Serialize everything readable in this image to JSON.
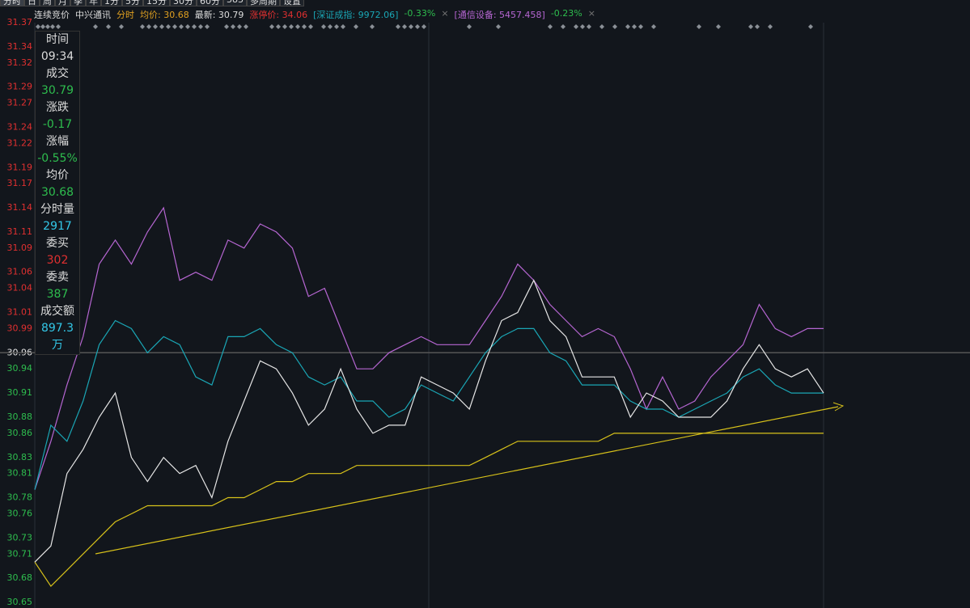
{
  "tabs": [
    "分时",
    "日",
    "周",
    "月",
    "季",
    "年",
    "1分",
    "5分",
    "15分",
    "30分",
    "60分",
    "383",
    "多周期",
    "设置"
  ],
  "header": {
    "mode": "连续竞价",
    "stock": "中兴通讯",
    "view": "分时",
    "avg": "均价: 30.68",
    "last": "最新: 30.79",
    "limit": "涨停价: 34.06",
    "index1": "[深证成指: 9972.06]",
    "index1_chg": "-0.33%",
    "index2": "[通信设备: 5457.458]",
    "index2_chg": "-0.23%",
    "close": "×"
  },
  "panel": [
    {
      "label": "时间",
      "value": "09:34"
    },
    {
      "label": "成交",
      "value": "30.79"
    },
    {
      "label": "涨跌",
      "value": "-0.17"
    },
    {
      "label": "涨幅",
      "value": "-0.55%"
    },
    {
      "label": "均价",
      "value": "30.68"
    },
    {
      "label": "分时量",
      "value": "2917"
    },
    {
      "label": "委买",
      "value": "302"
    },
    {
      "label": "委卖",
      "value": "387"
    },
    {
      "label": "成交额",
      "value": "897.3万"
    }
  ],
  "chart_data": {
    "type": "line",
    "ylim": [
      30.65,
      31.37
    ],
    "prev_close": 30.96,
    "up_color": "#e03030",
    "down_color": "#2ebd4e",
    "flat_color": "#e6e6e6",
    "yticks": [
      31.37,
      31.34,
      31.32,
      31.29,
      31.27,
      31.24,
      31.22,
      31.19,
      31.17,
      31.14,
      31.11,
      31.09,
      31.06,
      31.04,
      31.01,
      30.99,
      30.96,
      30.94,
      30.91,
      30.88,
      30.86,
      30.83,
      30.81,
      30.78,
      30.76,
      30.73,
      30.71,
      30.68,
      30.65
    ],
    "series": [
      {
        "color": "#b666d2",
        "values": [
          30.79,
          30.85,
          30.92,
          30.98,
          31.07,
          31.1,
          31.07,
          31.11,
          31.14,
          31.05,
          31.06,
          31.05,
          31.1,
          31.09,
          31.12,
          31.11,
          31.09,
          31.03,
          31.04,
          30.99,
          30.94,
          30.94,
          30.96,
          30.97,
          30.98,
          30.97,
          30.97,
          30.97,
          31.0,
          31.03,
          31.07,
          31.05,
          31.02,
          31.0,
          30.98,
          30.99,
          30.98,
          30.94,
          30.89,
          30.93,
          30.89,
          30.9,
          30.93,
          30.95,
          30.97,
          31.02,
          30.99,
          30.98,
          30.99,
          30.99
        ]
      },
      {
        "color": "#1aa6b5",
        "values": [
          30.79,
          30.87,
          30.85,
          30.9,
          30.97,
          31.0,
          30.99,
          30.96,
          30.98,
          30.97,
          30.93,
          30.92,
          30.98,
          30.98,
          30.99,
          30.97,
          30.96,
          30.93,
          30.92,
          30.93,
          30.9,
          30.9,
          30.88,
          30.89,
          30.92,
          30.91,
          30.9,
          30.93,
          30.96,
          30.98,
          30.99,
          30.99,
          30.96,
          30.95,
          30.92,
          30.92,
          30.92,
          30.9,
          30.89,
          30.89,
          30.88,
          30.89,
          30.9,
          30.91,
          30.93,
          30.94,
          30.92,
          30.91,
          30.91,
          30.91
        ]
      },
      {
        "color": "#d8c21a",
        "values": [
          30.7,
          30.67,
          30.69,
          30.71,
          30.73,
          30.75,
          30.76,
          30.77,
          30.77,
          30.77,
          30.77,
          30.77,
          30.78,
          30.78,
          30.79,
          30.8,
          30.8,
          30.81,
          30.81,
          30.81,
          30.82,
          30.82,
          30.82,
          30.82,
          30.82,
          30.82,
          30.82,
          30.82,
          30.83,
          30.84,
          30.85,
          30.85,
          30.85,
          30.85,
          30.85,
          30.85,
          30.86,
          30.86,
          30.86,
          30.86,
          30.86,
          30.86,
          30.86,
          30.86,
          30.86,
          30.86,
          30.86,
          30.86,
          30.86,
          30.86
        ]
      },
      {
        "color": "#e6e6e6",
        "values": [
          30.7,
          30.72,
          30.81,
          30.84,
          30.88,
          30.91,
          30.83,
          30.8,
          30.83,
          30.81,
          30.82,
          30.78,
          30.85,
          30.9,
          30.95,
          30.94,
          30.91,
          30.87,
          30.89,
          30.94,
          30.89,
          30.86,
          30.87,
          30.87,
          30.93,
          30.92,
          30.91,
          30.89,
          30.95,
          31.0,
          31.01,
          31.05,
          31.0,
          30.98,
          30.93,
          30.93,
          30.93,
          30.88,
          30.91,
          30.9,
          30.88,
          30.88,
          30.88,
          30.9,
          30.94,
          30.97,
          30.94,
          30.93,
          30.94,
          30.91
        ]
      }
    ]
  }
}
